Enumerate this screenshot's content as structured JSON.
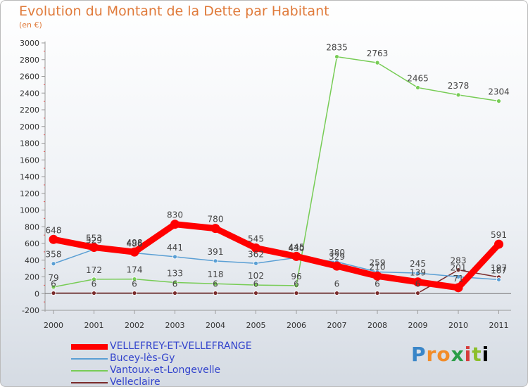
{
  "chart_data": {
    "type": "line",
    "title": "Evolution du Montant de la Dette par Habitant",
    "subtitle": "(en €)",
    "categories": [
      "2000",
      "2001",
      "2002",
      "2003",
      "2004",
      "2005",
      "2006",
      "2007",
      "2008",
      "2009",
      "2010",
      "2011"
    ],
    "ylim": [
      -200,
      3000
    ],
    "yticks": [
      -200,
      0,
      200,
      400,
      600,
      800,
      1000,
      1200,
      1400,
      1600,
      1800,
      2000,
      2200,
      2400,
      2600,
      2800,
      3000
    ],
    "grid": false,
    "legend_position": "bottom-left",
    "series": [
      {
        "name": "VELLEFREY-ET-VELLEFRANGE",
        "color": "#ff0000",
        "values": [
          648,
          553,
          498,
          830,
          780,
          545,
          445,
          329,
          210,
          139,
          71,
          591
        ]
      },
      {
        "name": "Bucey-lès-Gy",
        "color": "#5a9fd4",
        "values": [
          358,
          529,
          486,
          441,
          391,
          362,
          430,
          380,
          259,
          245,
          201,
          167
        ]
      },
      {
        "name": "Vantoux-et-Longevelle",
        "color": "#77cc55",
        "values": [
          79,
          172,
          174,
          133,
          118,
          102,
          96,
          2835,
          2763,
          2465,
          2378,
          2304
        ]
      },
      {
        "name": "Velleclaire",
        "color": "#7a2b2b",
        "values": [
          6,
          6,
          6,
          6,
          6,
          6,
          6,
          6,
          6,
          6,
          283,
          197
        ]
      }
    ]
  },
  "logo": {
    "letters": [
      "P",
      "r",
      "o",
      "x",
      "i",
      "t",
      "i"
    ]
  }
}
